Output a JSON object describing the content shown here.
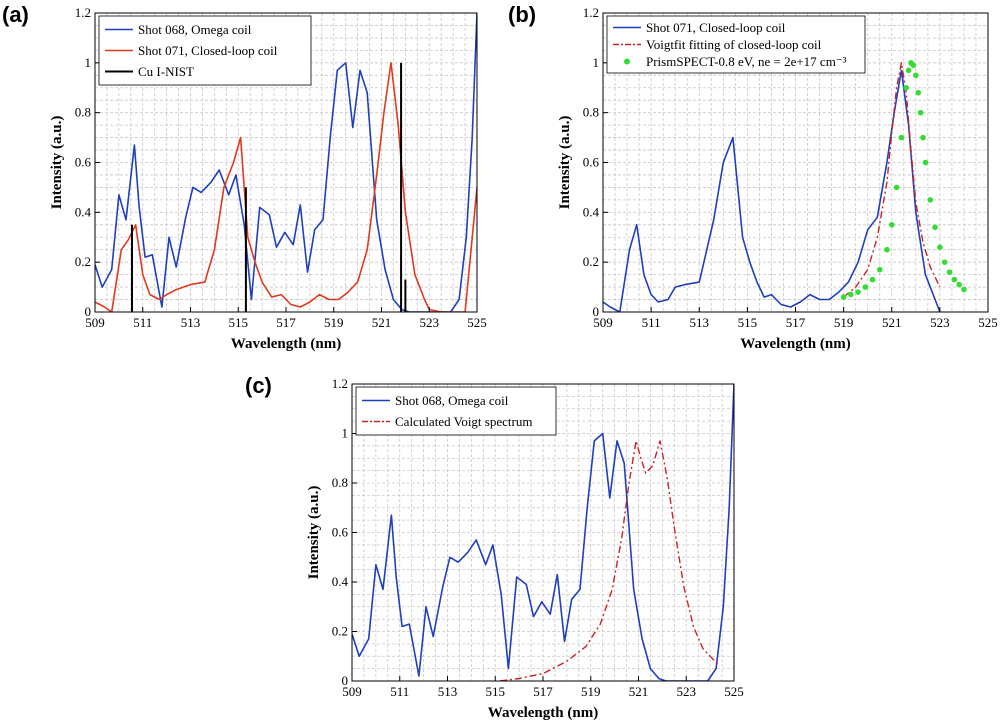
{
  "figure": {
    "background": "#ffffff"
  },
  "chart_data": [
    {
      "panel": "(a)",
      "type": "line",
      "xlabel": "Wavelength (nm)",
      "ylabel": "Intensity (a.u.)",
      "xlim": [
        509,
        525
      ],
      "ylim": [
        0,
        1.2
      ],
      "xticks": [
        509,
        511,
        513,
        515,
        517,
        519,
        521,
        523,
        525
      ],
      "yticks": [
        0,
        0.2,
        0.4,
        0.6,
        0.8,
        1,
        1.2
      ],
      "grid": "dashed-major-minor",
      "legend_position": "top-left",
      "series": [
        {
          "name": "Shot 068, Omega coil",
          "style": "line",
          "color": "#1f3fbf",
          "x": [
            509.0,
            509.3,
            509.7,
            510.0,
            510.3,
            510.65,
            510.85,
            511.1,
            511.4,
            511.8,
            512.1,
            512.4,
            512.8,
            513.1,
            513.45,
            513.85,
            514.2,
            514.6,
            514.9,
            515.25,
            515.55,
            515.9,
            516.3,
            516.6,
            516.95,
            517.3,
            517.6,
            517.9,
            518.2,
            518.55,
            518.85,
            519.15,
            519.5,
            519.8,
            520.1,
            520.4,
            520.8,
            521.15,
            521.5,
            521.85,
            522.15,
            522.5,
            522.9,
            523.3,
            523.65,
            523.9,
            524.25,
            524.55,
            524.8,
            525.0
          ],
          "y": [
            0.19,
            0.1,
            0.17,
            0.47,
            0.37,
            0.67,
            0.42,
            0.22,
            0.23,
            0.02,
            0.3,
            0.18,
            0.38,
            0.5,
            0.48,
            0.52,
            0.57,
            0.47,
            0.55,
            0.35,
            0.05,
            0.42,
            0.39,
            0.26,
            0.32,
            0.27,
            0.43,
            0.16,
            0.33,
            0.37,
            0.7,
            0.97,
            1.0,
            0.74,
            0.97,
            0.88,
            0.37,
            0.17,
            0.05,
            0.01,
            0.0,
            0.0,
            0.0,
            0.0,
            0.0,
            0.0,
            0.05,
            0.3,
            0.7,
            1.2
          ]
        },
        {
          "name": "Shot 071, Closed-loop coil",
          "style": "line",
          "color": "#e03a1e",
          "x": [
            509.0,
            509.4,
            509.7,
            510.1,
            510.4,
            510.7,
            511.0,
            511.3,
            511.7,
            512.0,
            512.4,
            513.0,
            513.6,
            514.0,
            514.4,
            514.8,
            515.1,
            515.4,
            515.7,
            516.0,
            516.4,
            516.8,
            517.2,
            517.6,
            518.0,
            518.4,
            518.8,
            519.2,
            519.6,
            520.0,
            520.4,
            520.8,
            521.1,
            521.4,
            521.7,
            522.0,
            522.4,
            522.8,
            523.0,
            523.5,
            524.0,
            524.5,
            525.0
          ],
          "y": [
            0.04,
            0.02,
            0.0,
            0.25,
            0.29,
            0.35,
            0.15,
            0.07,
            0.05,
            0.07,
            0.09,
            0.11,
            0.12,
            0.25,
            0.5,
            0.6,
            0.7,
            0.3,
            0.2,
            0.12,
            0.06,
            0.07,
            0.03,
            0.02,
            0.04,
            0.07,
            0.05,
            0.05,
            0.08,
            0.12,
            0.25,
            0.55,
            0.8,
            1.0,
            0.75,
            0.4,
            0.15,
            0.05,
            0.01,
            0.0,
            0.0,
            0.0,
            0.5
          ]
        },
        {
          "name": "Cu I-NIST",
          "style": "sticks",
          "color": "#000000",
          "x": [
            510.55,
            515.32,
            521.82,
            522.0
          ],
          "y": [
            0.35,
            0.5,
            1.0,
            0.13
          ]
        }
      ]
    },
    {
      "panel": "(b)",
      "type": "line",
      "xlabel": "Wavelength (nm)",
      "ylabel": "Intensity (a.u.)",
      "xlim": [
        509,
        525
      ],
      "ylim": [
        0,
        1.2
      ],
      "xticks": [
        509,
        511,
        513,
        515,
        517,
        519,
        521,
        523,
        525
      ],
      "yticks": [
        0,
        0.2,
        0.4,
        0.6,
        0.8,
        1,
        1.2
      ],
      "grid": "dashed-major-minor",
      "legend_position": "top-left",
      "series": [
        {
          "name": "Shot 071, Closed-loop coil",
          "style": "line",
          "color": "#1f3fbf",
          "x": [
            509.0,
            509.3,
            509.7,
            510.1,
            510.4,
            510.7,
            511.0,
            511.3,
            511.7,
            512.0,
            512.4,
            513.0,
            513.6,
            514.0,
            514.4,
            514.8,
            515.1,
            515.4,
            515.7,
            516.0,
            516.4,
            516.8,
            517.2,
            517.6,
            518.0,
            518.4,
            518.8,
            519.2,
            519.6,
            520.0,
            520.4,
            520.8,
            521.1,
            521.4,
            521.7,
            522.0,
            522.4,
            522.8,
            523.0
          ],
          "y": [
            0.04,
            0.02,
            0.0,
            0.25,
            0.35,
            0.15,
            0.07,
            0.04,
            0.05,
            0.1,
            0.11,
            0.12,
            0.37,
            0.6,
            0.7,
            0.3,
            0.2,
            0.12,
            0.06,
            0.07,
            0.03,
            0.02,
            0.04,
            0.07,
            0.05,
            0.05,
            0.08,
            0.12,
            0.2,
            0.33,
            0.38,
            0.6,
            0.8,
            0.97,
            0.75,
            0.4,
            0.15,
            0.05,
            0.0
          ]
        },
        {
          "name": "Voigtfit fitting of closed-loop coil",
          "style": "dashdot",
          "color": "#cc2222",
          "x": [
            519.0,
            519.5,
            520.0,
            520.4,
            520.8,
            521.0,
            521.2,
            521.4,
            521.6,
            521.8,
            522.0,
            522.3,
            522.6,
            523.0
          ],
          "y": [
            0.06,
            0.1,
            0.17,
            0.3,
            0.52,
            0.72,
            0.9,
            1.0,
            0.88,
            0.65,
            0.44,
            0.28,
            0.18,
            0.1
          ]
        },
        {
          "name": "PrismSPECT-0.8 eV, ne = 2e+17 cm⁻³",
          "style": "dots",
          "color": "#33dd33",
          "x": [
            519.0,
            519.3,
            519.6,
            519.9,
            520.2,
            520.5,
            520.8,
            521.0,
            521.2,
            521.4,
            521.6,
            521.7,
            521.8,
            521.9,
            522.0,
            522.1,
            522.2,
            522.3,
            522.4,
            522.6,
            522.8,
            523.0,
            523.2,
            523.4,
            523.6,
            523.8,
            524.0
          ],
          "y": [
            0.06,
            0.07,
            0.08,
            0.1,
            0.13,
            0.17,
            0.25,
            0.35,
            0.5,
            0.7,
            0.9,
            0.97,
            1.0,
            0.99,
            0.95,
            0.88,
            0.8,
            0.7,
            0.6,
            0.45,
            0.34,
            0.26,
            0.2,
            0.16,
            0.13,
            0.11,
            0.09
          ]
        }
      ]
    },
    {
      "panel": "(c)",
      "type": "line",
      "xlabel": "Wavelength (nm)",
      "ylabel": "Intensity (a.u.)",
      "xlim": [
        509,
        525
      ],
      "ylim": [
        0,
        1.2
      ],
      "xticks": [
        509,
        511,
        513,
        515,
        517,
        519,
        521,
        523,
        525
      ],
      "yticks": [
        0,
        0.2,
        0.4,
        0.6,
        0.8,
        1,
        1.2
      ],
      "grid": "dashed-major-minor",
      "legend_position": "top-left",
      "series": [
        {
          "name": "Shot 068, Omega coil",
          "style": "line",
          "color": "#1f3fbf",
          "x": [
            509.0,
            509.3,
            509.7,
            510.0,
            510.3,
            510.65,
            510.85,
            511.1,
            511.4,
            511.8,
            512.1,
            512.4,
            512.8,
            513.1,
            513.45,
            513.85,
            514.2,
            514.6,
            514.9,
            515.25,
            515.55,
            515.9,
            516.3,
            516.6,
            516.95,
            517.3,
            517.6,
            517.9,
            518.2,
            518.55,
            518.85,
            519.15,
            519.5,
            519.8,
            520.1,
            520.4,
            520.8,
            521.15,
            521.5,
            521.85,
            522.15,
            522.5,
            522.9,
            523.3,
            523.65,
            523.9,
            524.25,
            524.55,
            524.8,
            525.0
          ],
          "y": [
            0.19,
            0.1,
            0.17,
            0.47,
            0.37,
            0.67,
            0.42,
            0.22,
            0.23,
            0.02,
            0.3,
            0.18,
            0.38,
            0.5,
            0.48,
            0.52,
            0.57,
            0.47,
            0.55,
            0.35,
            0.05,
            0.42,
            0.39,
            0.26,
            0.32,
            0.27,
            0.43,
            0.16,
            0.33,
            0.37,
            0.7,
            0.97,
            1.0,
            0.74,
            0.97,
            0.88,
            0.37,
            0.17,
            0.05,
            0.01,
            0.0,
            0.0,
            0.0,
            0.0,
            0.0,
            0.0,
            0.05,
            0.3,
            0.7,
            1.2
          ]
        },
        {
          "name": "Calculated Voigt spectrum",
          "style": "dashdot",
          "color": "#cc2222",
          "x": [
            515.2,
            516.0,
            517.0,
            518.0,
            518.8,
            519.4,
            519.9,
            520.3,
            520.6,
            520.9,
            521.1,
            521.3,
            521.6,
            521.9,
            522.2,
            522.5,
            522.9,
            523.3,
            523.7,
            524.1,
            524.4
          ],
          "y": [
            0.0,
            0.01,
            0.03,
            0.08,
            0.14,
            0.23,
            0.37,
            0.58,
            0.8,
            0.97,
            0.9,
            0.84,
            0.87,
            0.97,
            0.82,
            0.62,
            0.38,
            0.22,
            0.13,
            0.09,
            0.06
          ]
        }
      ]
    }
  ]
}
